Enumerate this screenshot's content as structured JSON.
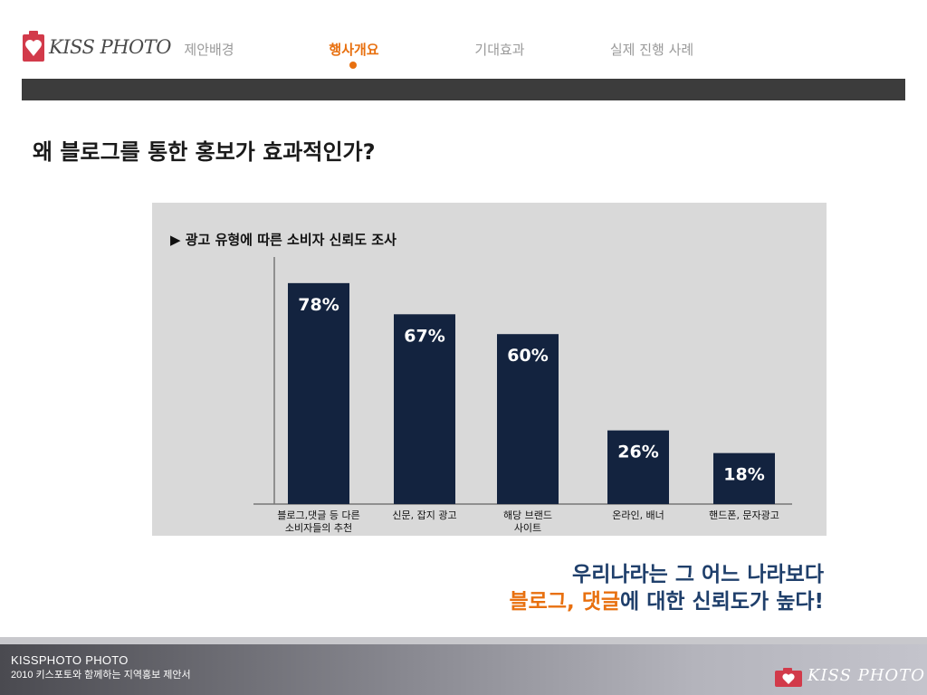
{
  "brand": {
    "logo_text": "KISS PHOTO",
    "accent_color": "#e8700f",
    "logo_color": "#d23a4a"
  },
  "nav": [
    {
      "label": "제안배경",
      "active": false
    },
    {
      "label": "행사개요",
      "active": true
    },
    {
      "label": "기대효과",
      "active": false
    },
    {
      "label": "실제 진행 사례",
      "active": false
    }
  ],
  "page_title": "왜 블로그를 통한 홍보가 효과적인가?",
  "chart_data": {
    "type": "bar",
    "title": "▶ 광고 유형에 따른 소비자 신뢰도 조사",
    "categories": [
      [
        "블로그,댓글 등 다른",
        "소비자들의 추천"
      ],
      [
        "신문, 잡지 광고"
      ],
      [
        "해당 브랜드",
        "사이트"
      ],
      [
        "온라인, 배너"
      ],
      [
        "핸드폰, 문자광고"
      ]
    ],
    "values": [
      78,
      67,
      60,
      26,
      18
    ],
    "value_labels": [
      "78%",
      "67%",
      "60%",
      "26%",
      "18%"
    ],
    "ylim": [
      0,
      100
    ],
    "grid": false,
    "bar_color": "#13233f",
    "panel_color": "#d9d9d9"
  },
  "conclusion": {
    "line1": "우리나라는 그 어느 나라보다",
    "line2_highlight": "블로그, 댓글",
    "line2_rest": "에 대한 신뢰도가 높다!"
  },
  "footer": {
    "brand": "KISSPHOTO  PHOTO",
    "subtitle": "2010 키스포토와 함께하는 지역홍보 제안서",
    "logo_text": "KISS PHOTO"
  }
}
